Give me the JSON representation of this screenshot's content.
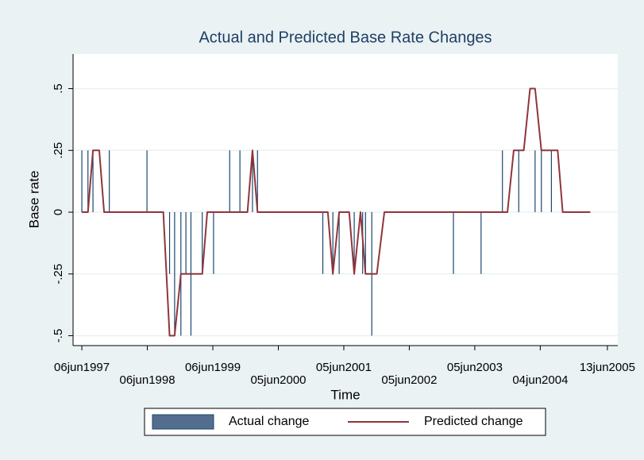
{
  "chart_data": {
    "type": "line",
    "title": "Actual and Predicted Base Rate Changes",
    "y_label": "Base rate",
    "x_label": "Time",
    "xlim": [
      "1997-04-18",
      "2005-08-10"
    ],
    "xticks": [
      {
        "value": "1997-06-06",
        "label": "06jun1997"
      },
      {
        "value": "1998-06-06",
        "label": "06jun1998"
      },
      {
        "value": "1999-06-06",
        "label": "06jun1999"
      },
      {
        "value": "2000-06-05",
        "label": "05jun2000"
      },
      {
        "value": "2001-06-05",
        "label": "05jun2001"
      },
      {
        "value": "2002-06-05",
        "label": "05jun2002"
      },
      {
        "value": "2003-06-05",
        "label": "05jun2003"
      },
      {
        "value": "2004-06-04",
        "label": "04jun2004"
      },
      {
        "value": "2005-06-13",
        "label": "13jun2005"
      }
    ],
    "ylim": [
      -0.54,
      0.64
    ],
    "yticks": [
      {
        "value": -0.5,
        "label": "-.5"
      },
      {
        "value": -0.25,
        "label": "-.25"
      },
      0,
      {
        "value": 0.25,
        "label": ".25"
      },
      {
        "value": 0.5,
        "label": ".5"
      }
    ],
    "grid": true,
    "legend": "bottom",
    "series": [
      {
        "name": "Actual change",
        "type": "spike",
        "color": "#1a476f",
        "x": [
          "1997-06-06",
          "1997-07-10",
          "1997-08-07",
          "1997-11-06",
          "1998-06-04",
          "1998-10-08",
          "1998-11-05",
          "1998-12-10",
          "1999-01-07",
          "1999-02-04",
          "1999-04-08",
          "1999-06-10",
          "1999-09-08",
          "1999-11-04",
          "2000-01-13",
          "2000-02-10",
          "2001-02-08",
          "2001-04-05",
          "2001-05-10",
          "2001-08-02",
          "2001-09-18",
          "2001-10-04",
          "2001-11-08",
          "2003-02-06",
          "2003-07-10",
          "2003-11-06",
          "2004-02-05",
          "2004-05-06",
          "2004-06-10",
          "2004-08-05"
        ],
        "values": [
          0.25,
          0.25,
          0.25,
          0.25,
          0.25,
          -0.25,
          -0.5,
          -0.5,
          -0.25,
          -0.5,
          -0.25,
          -0.25,
          0.25,
          0.25,
          0.25,
          0.25,
          -0.25,
          -0.25,
          -0.25,
          -0.25,
          -0.25,
          -0.25,
          -0.5,
          -0.25,
          -0.25,
          0.25,
          0.25,
          0.25,
          0.25,
          0.25
        ]
      },
      {
        "name": "Predicted change",
        "type": "line",
        "color": "#90353b",
        "x": [
          "1997-06-06",
          "1997-07-10",
          "1997-08-07",
          "1997-09-11",
          "1997-10-08",
          "1998-09-03",
          "1998-10-08",
          "1998-11-05",
          "1998-12-10",
          "1999-04-08",
          "1999-05-06",
          "1999-12-16",
          "2000-01-13",
          "2000-02-10",
          "2001-03-08",
          "2001-04-05",
          "2001-05-10",
          "2001-07-05",
          "2001-08-02",
          "2001-09-06",
          "2001-10-04",
          "2001-12-06",
          "2002-01-17",
          "2003-12-04",
          "2004-01-08",
          "2004-03-04",
          "2004-04-08",
          "2004-05-06",
          "2004-06-10",
          "2004-09-09",
          "2004-10-07",
          "2005-03-10"
        ],
        "values": [
          0,
          0,
          0.25,
          0.25,
          0,
          0,
          -0.5,
          -0.5,
          -0.25,
          -0.25,
          0,
          0,
          0.25,
          0,
          0,
          -0.25,
          0,
          0,
          -0.25,
          0,
          -0.25,
          -0.25,
          0,
          0,
          0.25,
          0.25,
          0.5,
          0.5,
          0.25,
          0.25,
          0,
          0
        ]
      }
    ]
  }
}
